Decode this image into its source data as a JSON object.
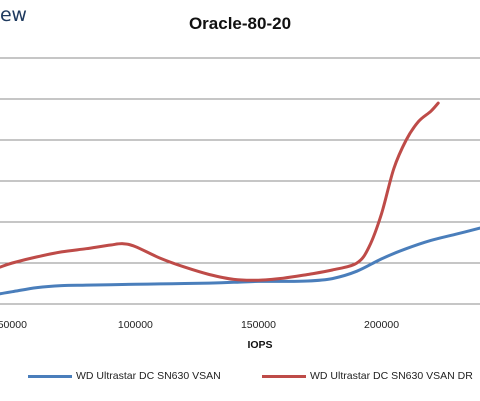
{
  "logo": {
    "text": "ew"
  },
  "chart_data": {
    "type": "line",
    "title": "Oracle-80-20",
    "xlabel": "IOPS",
    "ylabel": "",
    "xlim": [
      45000,
      240000
    ],
    "ylim": [
      0,
      6
    ],
    "x_ticks": [
      "50000",
      "100000",
      "150000",
      "200000"
    ],
    "x_tick_values": [
      50000,
      100000,
      150000,
      200000
    ],
    "grid": "horizontal",
    "legend_position": "bottom",
    "series": [
      {
        "name": "WD Ultrastar DC SN630 VSAN",
        "color": "#4a7ebb",
        "x": [
          45000,
          50000,
          60000,
          70000,
          80000,
          90000,
          100000,
          110000,
          120000,
          130000,
          140000,
          150000,
          160000,
          170000,
          180000,
          190000,
          200000,
          210000,
          220000,
          230000,
          240000
        ],
        "y": [
          0.25,
          0.3,
          0.4,
          0.45,
          0.46,
          0.47,
          0.48,
          0.49,
          0.5,
          0.51,
          0.53,
          0.55,
          0.55,
          0.56,
          0.62,
          0.8,
          1.1,
          1.35,
          1.55,
          1.7,
          1.85
        ]
      },
      {
        "name": "WD Ultrastar DC SN630 VSAN DR",
        "color": "#be4b48",
        "x": [
          45000,
          50000,
          60000,
          70000,
          80000,
          90000,
          95000,
          100000,
          110000,
          120000,
          130000,
          140000,
          150000,
          160000,
          170000,
          180000,
          190000,
          195000,
          200000,
          205000,
          210000,
          215000,
          220000,
          223000
        ],
        "y": [
          0.9,
          1.0,
          1.15,
          1.27,
          1.35,
          1.44,
          1.47,
          1.4,
          1.12,
          0.9,
          0.72,
          0.6,
          0.58,
          0.63,
          0.72,
          0.83,
          1.0,
          1.4,
          2.2,
          3.3,
          4.0,
          4.45,
          4.7,
          4.9
        ]
      }
    ]
  }
}
